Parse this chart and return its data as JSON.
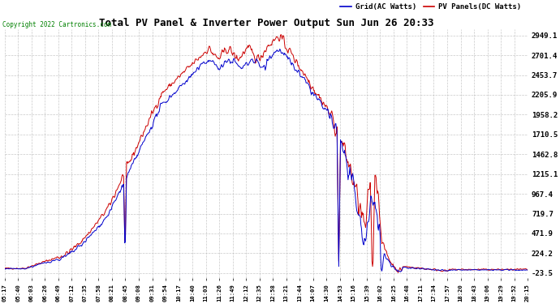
{
  "title": "Total PV Panel & Inverter Power Output Sun Jun 26 20:33",
  "copyright": "Copyright 2022 Cartronics.com",
  "legend_blue": "Grid(AC Watts)",
  "legend_red": "PV Panels(DC Watts)",
  "yticks": [
    2949.1,
    2701.4,
    2453.7,
    2205.9,
    1958.2,
    1710.5,
    1462.8,
    1215.1,
    967.4,
    719.7,
    471.9,
    224.2,
    -23.5
  ],
  "ymin": -23.5,
  "ymax": 2949.1,
  "background_color": "#ffffff",
  "grid_color": "#bbbbbb",
  "blue_color": "#0000cc",
  "red_color": "#cc0000",
  "xtick_labels": [
    "05:17",
    "05:40",
    "06:03",
    "06:26",
    "06:49",
    "07:12",
    "07:35",
    "07:58",
    "08:21",
    "08:45",
    "09:08",
    "09:31",
    "09:54",
    "10:17",
    "10:40",
    "11:03",
    "11:26",
    "11:49",
    "12:12",
    "12:35",
    "12:58",
    "13:21",
    "13:44",
    "14:07",
    "14:30",
    "14:53",
    "15:16",
    "15:39",
    "16:02",
    "16:25",
    "16:48",
    "17:11",
    "17:34",
    "17:57",
    "18:20",
    "18:43",
    "19:06",
    "19:29",
    "19:52",
    "20:15"
  ]
}
